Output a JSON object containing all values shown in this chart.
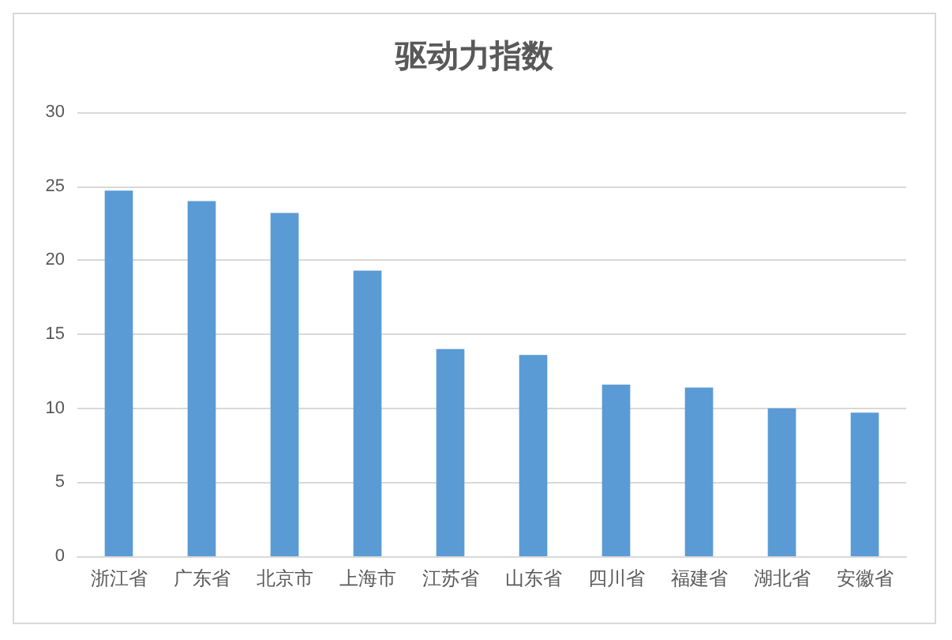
{
  "chart_data": {
    "type": "bar",
    "title": "驱动力指数",
    "categories": [
      "浙江省",
      "广东省",
      "北京市",
      "上海市",
      "江苏省",
      "山东省",
      "四川省",
      "福建省",
      "湖北省",
      "安徽省"
    ],
    "values": [
      24.7,
      24.0,
      23.2,
      19.3,
      14.0,
      13.6,
      11.6,
      11.4,
      10.0,
      9.7
    ],
    "color": "#5b9bd5",
    "ylim": [
      0,
      30
    ],
    "yticks": [
      0,
      5,
      10,
      15,
      20,
      25,
      30
    ],
    "grid": "y"
  }
}
